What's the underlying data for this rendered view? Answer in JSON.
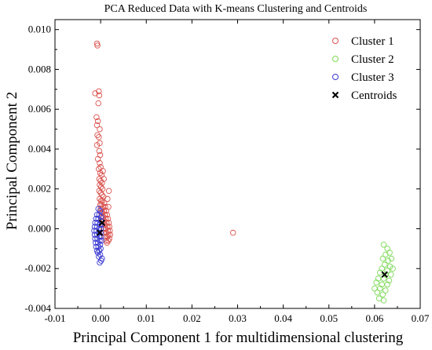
{
  "chart_data": {
    "type": "scatter",
    "title": "PCA Reduced Data with K-means Clustering and Centroids",
    "xlabel": "Principal Component 1  for multidimensional clustering",
    "ylabel": "Principal Component 2",
    "xlim": [
      -0.01,
      0.07
    ],
    "ylim": [
      -0.004,
      0.0105
    ],
    "xticks": [
      "-0.01",
      "0.00",
      "0.01",
      "0.02",
      "0.03",
      "0.04",
      "0.05",
      "0.06",
      "0.07"
    ],
    "yticks": [
      "-0.004",
      "-0.002",
      "0.000",
      "0.002",
      "0.004",
      "0.006",
      "0.008",
      "0.010"
    ],
    "legend_position": "top-right",
    "series": [
      {
        "name": "Cluster 1",
        "color": "#d9534f",
        "marker": "circle-open",
        "points": [
          [
            -0.0008,
            0.0093
          ],
          [
            -0.0007,
            0.0092
          ],
          [
            -0.0012,
            0.0068
          ],
          [
            -0.0004,
            0.0069
          ],
          [
            -0.0003,
            0.0067
          ],
          [
            -0.0005,
            0.0063
          ],
          [
            -0.0009,
            0.0056
          ],
          [
            -0.0006,
            0.0054
          ],
          [
            -0.0008,
            0.0052
          ],
          [
            -0.0002,
            0.005
          ],
          [
            -0.0007,
            0.0047
          ],
          [
            -0.0004,
            0.0046
          ],
          [
            -0.0002,
            0.0043
          ],
          [
            -0.0008,
            0.0042
          ],
          [
            -0.0003,
            0.0039
          ],
          [
            -0.0001,
            0.0037
          ],
          [
            -0.0006,
            0.0035
          ],
          [
            -0.0002,
            0.0033
          ],
          [
            0.0,
            0.0031
          ],
          [
            -0.0004,
            0.003
          ],
          [
            -0.0001,
            0.0028
          ],
          [
            0.0002,
            0.0027
          ],
          [
            -0.0003,
            0.0025
          ],
          [
            0.0,
            0.0024
          ],
          [
            0.0003,
            0.0023
          ],
          [
            -0.0002,
            0.0022
          ],
          [
            0.0001,
            0.0021
          ],
          [
            0.0004,
            0.002
          ],
          [
            -0.0003,
            0.0019
          ],
          [
            0.0,
            0.0018
          ],
          [
            0.0003,
            0.0017
          ],
          [
            0.0006,
            0.0016
          ],
          [
            -0.0002,
            0.0015
          ],
          [
            0.0001,
            0.0014
          ],
          [
            0.0004,
            0.0014
          ],
          [
            0.0008,
            0.0013
          ],
          [
            -0.0001,
            0.0012
          ],
          [
            0.0002,
            0.0012
          ],
          [
            0.0005,
            0.0011
          ],
          [
            0.001,
            0.0011
          ],
          [
            0.0,
            0.001
          ],
          [
            0.0003,
            0.001
          ],
          [
            0.0007,
            0.0009
          ],
          [
            0.0012,
            0.0009
          ],
          [
            0.0001,
            0.0008
          ],
          [
            0.0004,
            0.0008
          ],
          [
            0.0009,
            0.0007
          ],
          [
            0.0014,
            0.0007
          ],
          [
            0.0002,
            0.0006
          ],
          [
            0.0006,
            0.0006
          ],
          [
            0.0011,
            0.0005
          ],
          [
            0.0016,
            0.0005
          ],
          [
            0.0003,
            0.0004
          ],
          [
            0.0008,
            0.0004
          ],
          [
            0.0013,
            0.0003
          ],
          [
            0.0018,
            0.0003
          ],
          [
            0.0005,
            0.0002
          ],
          [
            0.001,
            0.0002
          ],
          [
            0.0015,
            0.0001
          ],
          [
            0.0019,
            0.0001
          ],
          [
            0.0006,
            0.0
          ],
          [
            0.0011,
            0.0
          ],
          [
            0.0016,
            -0.0001
          ],
          [
            0.002,
            -0.0001
          ],
          [
            0.0008,
            -0.0002
          ],
          [
            0.0013,
            -0.0002
          ],
          [
            0.0017,
            -0.0003
          ],
          [
            0.0021,
            -0.0003
          ],
          [
            0.001,
            -0.0004
          ],
          [
            0.0015,
            -0.0004
          ],
          [
            0.0019,
            -0.0005
          ],
          [
            0.0012,
            -0.0006
          ],
          [
            0.0017,
            -0.0006
          ],
          [
            0.0014,
            -0.0007
          ],
          [
            0.0018,
            0.0019
          ],
          [
            0.0015,
            0.0015
          ],
          [
            0.0017,
            0.0011
          ],
          [
            0.0007,
            0.0025
          ],
          [
            0.0005,
            0.0029
          ],
          [
            0.029,
            -0.0002
          ]
        ]
      },
      {
        "name": "Cluster 2",
        "color": "#7ed957",
        "marker": "circle-open",
        "points": [
          [
            0.062,
            -0.0008
          ],
          [
            0.0628,
            -0.001
          ],
          [
            0.0624,
            -0.0013
          ],
          [
            0.0633,
            -0.0012
          ],
          [
            0.0618,
            -0.0015
          ],
          [
            0.063,
            -0.0016
          ],
          [
            0.0637,
            -0.0015
          ],
          [
            0.0622,
            -0.0018
          ],
          [
            0.0634,
            -0.0019
          ],
          [
            0.0616,
            -0.002
          ],
          [
            0.0628,
            -0.0021
          ],
          [
            0.064,
            -0.002
          ],
          [
            0.0612,
            -0.0022
          ],
          [
            0.0624,
            -0.0023
          ],
          [
            0.0636,
            -0.0023
          ],
          [
            0.0608,
            -0.0025
          ],
          [
            0.062,
            -0.0025
          ],
          [
            0.0632,
            -0.0026
          ],
          [
            0.0604,
            -0.0027
          ],
          [
            0.0616,
            -0.0028
          ],
          [
            0.0628,
            -0.0028
          ],
          [
            0.06,
            -0.003
          ],
          [
            0.0612,
            -0.003
          ],
          [
            0.0624,
            -0.0031
          ],
          [
            0.0606,
            -0.0032
          ],
          [
            0.0618,
            -0.0033
          ],
          [
            0.061,
            -0.0035
          ],
          [
            0.062,
            -0.0036
          ]
        ]
      },
      {
        "name": "Cluster 3",
        "color": "#3b3bd1",
        "marker": "circle-open",
        "points": [
          [
            -0.0005,
            0.001
          ],
          [
            -0.0001,
            0.0009
          ],
          [
            -0.0008,
            0.0007
          ],
          [
            -0.0003,
            0.0007
          ],
          [
            0.0001,
            0.0006
          ],
          [
            -0.001,
            0.0005
          ],
          [
            -0.0005,
            0.0005
          ],
          [
            0.0,
            0.0004
          ],
          [
            -0.0012,
            0.0003
          ],
          [
            -0.0007,
            0.0003
          ],
          [
            -0.0002,
            0.0002
          ],
          [
            0.0002,
            0.0002
          ],
          [
            -0.0013,
            0.0001
          ],
          [
            -0.0008,
            0.0001
          ],
          [
            -0.0003,
            0.0
          ],
          [
            0.0001,
            0.0
          ],
          [
            -0.0014,
            -0.0001
          ],
          [
            -0.0009,
            -0.0001
          ],
          [
            -0.0004,
            -0.0002
          ],
          [
            0.0,
            -0.0002
          ],
          [
            -0.0013,
            -0.0003
          ],
          [
            -0.0008,
            -0.0003
          ],
          [
            -0.0003,
            -0.0004
          ],
          [
            0.0001,
            -0.0004
          ],
          [
            -0.0012,
            -0.0005
          ],
          [
            -0.0007,
            -0.0005
          ],
          [
            -0.0002,
            -0.0006
          ],
          [
            0.0002,
            -0.0006
          ],
          [
            -0.0011,
            -0.0007
          ],
          [
            -0.0006,
            -0.0007
          ],
          [
            -0.0001,
            -0.0008
          ],
          [
            -0.001,
            -0.0009
          ],
          [
            -0.0005,
            -0.0009
          ],
          [
            0.0,
            -0.001
          ],
          [
            -0.0008,
            -0.0011
          ],
          [
            -0.0003,
            -0.0011
          ],
          [
            -0.0006,
            -0.0012
          ],
          [
            -0.0001,
            -0.0013
          ],
          [
            -0.0004,
            -0.0014
          ],
          [
            0.0001,
            -0.0016
          ],
          [
            -0.0002,
            -0.0017
          ],
          [
            0.0003,
            -0.0015
          ]
        ]
      },
      {
        "name": "Centroids",
        "color": "#000000",
        "marker": "x",
        "points": [
          [
            0.0003,
            0.0003
          ],
          [
            -0.0002,
            -0.0002
          ],
          [
            0.0622,
            -0.0023
          ]
        ]
      }
    ]
  }
}
